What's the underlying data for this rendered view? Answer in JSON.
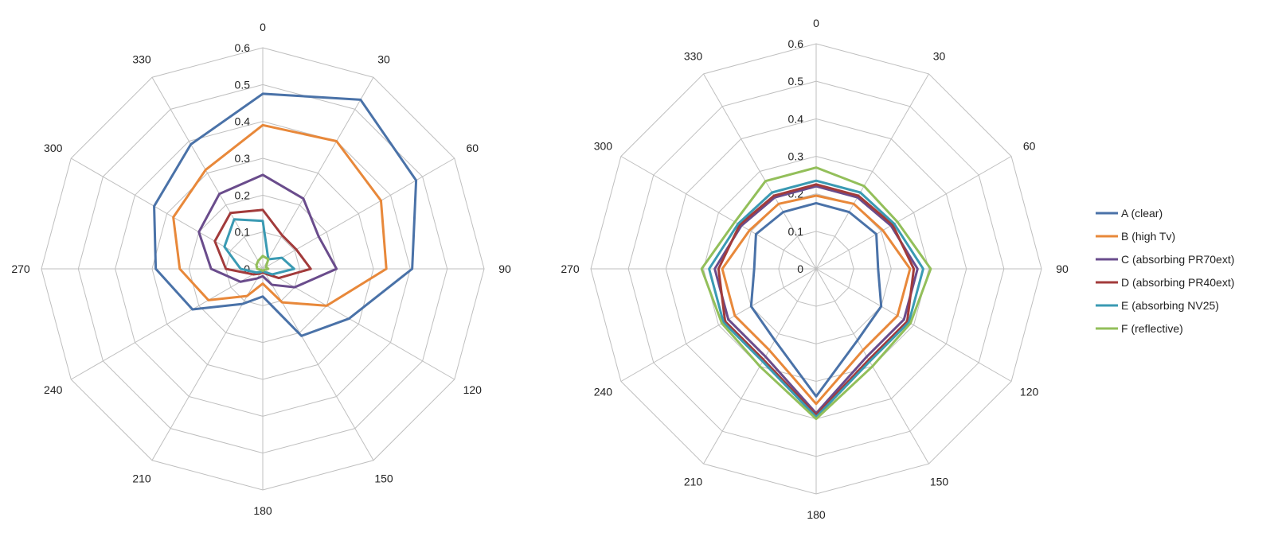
{
  "chart_data": [
    {
      "type": "radar",
      "angles": [
        "0",
        "30",
        "60",
        "90",
        "120",
        "150",
        "180",
        "210",
        "240",
        "270",
        "300",
        "330"
      ],
      "radial_ticks": [
        "0",
        "0.1",
        "0.2",
        "0.3",
        "0.4",
        "0.5",
        "0.6"
      ],
      "rlim": [
        0,
        0.6
      ],
      "grid": true,
      "series": [
        {
          "name": "A (clear)",
          "color": "#4a72a8",
          "values": [
            0.475,
            0.53,
            0.48,
            0.405,
            0.27,
            0.21,
            0.075,
            0.11,
            0.22,
            0.29,
            0.34,
            0.39
          ]
        },
        {
          "name": "B (high Tv)",
          "color": "#e8883a",
          "values": [
            0.39,
            0.4,
            0.37,
            0.335,
            0.2,
            0.105,
            0.04,
            0.085,
            0.17,
            0.225,
            0.28,
            0.31
          ]
        },
        {
          "name": "C (absorbing PR70ext)",
          "color": "#6a4c8c",
          "values": [
            0.255,
            0.22,
            0.175,
            0.2,
            0.1,
            0.05,
            0.02,
            0.03,
            0.07,
            0.14,
            0.2,
            0.235
          ]
        },
        {
          "name": "D (absorbing PR40ext)",
          "color": "#a23b3b",
          "values": [
            0.16,
            0.105,
            0.105,
            0.13,
            0.05,
            0.015,
            0.01,
            0.015,
            0.03,
            0.1,
            0.15,
            0.175
          ]
        },
        {
          "name": "E (absorbing NV25)",
          "color": "#3a9ab3",
          "values": [
            0.13,
            0.03,
            0.06,
            0.085,
            0.03,
            0.01,
            0.005,
            0.01,
            0.02,
            0.06,
            0.12,
            0.155
          ]
        },
        {
          "name": "F (reflective)",
          "color": "#93bf5a",
          "values": [
            0.035,
            0.03,
            0.01,
            0.015,
            0.005,
            0.005,
            0.005,
            0.005,
            0.005,
            0.015,
            0.02,
            0.025
          ]
        }
      ]
    },
    {
      "type": "radar",
      "angles": [
        "0",
        "30",
        "60",
        "90",
        "120",
        "150",
        "180",
        "210",
        "240",
        "270",
        "300",
        "330"
      ],
      "radial_ticks": [
        "0",
        "0.1",
        "0.2",
        "0.3",
        "0.4",
        "0.5",
        "0.6"
      ],
      "rlim": [
        0,
        0.6
      ],
      "grid": true,
      "legend_position": "right",
      "series": [
        {
          "name": "A (clear)",
          "color": "#4a72a8",
          "values": [
            0.175,
            0.175,
            0.185,
            0.165,
            0.2,
            0.22,
            0.34,
            0.22,
            0.2,
            0.165,
            0.185,
            0.175
          ]
        },
        {
          "name": "B (high Tv)",
          "color": "#e8883a",
          "values": [
            0.195,
            0.2,
            0.205,
            0.25,
            0.25,
            0.25,
            0.36,
            0.25,
            0.25,
            0.25,
            0.205,
            0.2
          ]
        },
        {
          "name": "C (absorbing PR70ext)",
          "color": "#6a4c8c",
          "values": [
            0.22,
            0.22,
            0.23,
            0.27,
            0.27,
            0.27,
            0.385,
            0.27,
            0.27,
            0.27,
            0.23,
            0.22
          ]
        },
        {
          "name": "D (absorbing PR40ext)",
          "color": "#a23b3b",
          "values": [
            0.225,
            0.225,
            0.235,
            0.26,
            0.28,
            0.28,
            0.39,
            0.28,
            0.28,
            0.26,
            0.235,
            0.225
          ]
        },
        {
          "name": "E (absorbing NV25)",
          "color": "#3a9ab3",
          "values": [
            0.235,
            0.235,
            0.24,
            0.285,
            0.285,
            0.285,
            0.395,
            0.285,
            0.285,
            0.285,
            0.24,
            0.235
          ]
        },
        {
          "name": "F (reflective)",
          "color": "#93bf5a",
          "values": [
            0.27,
            0.255,
            0.25,
            0.305,
            0.29,
            0.3,
            0.4,
            0.3,
            0.29,
            0.305,
            0.25,
            0.27
          ]
        }
      ]
    }
  ]
}
